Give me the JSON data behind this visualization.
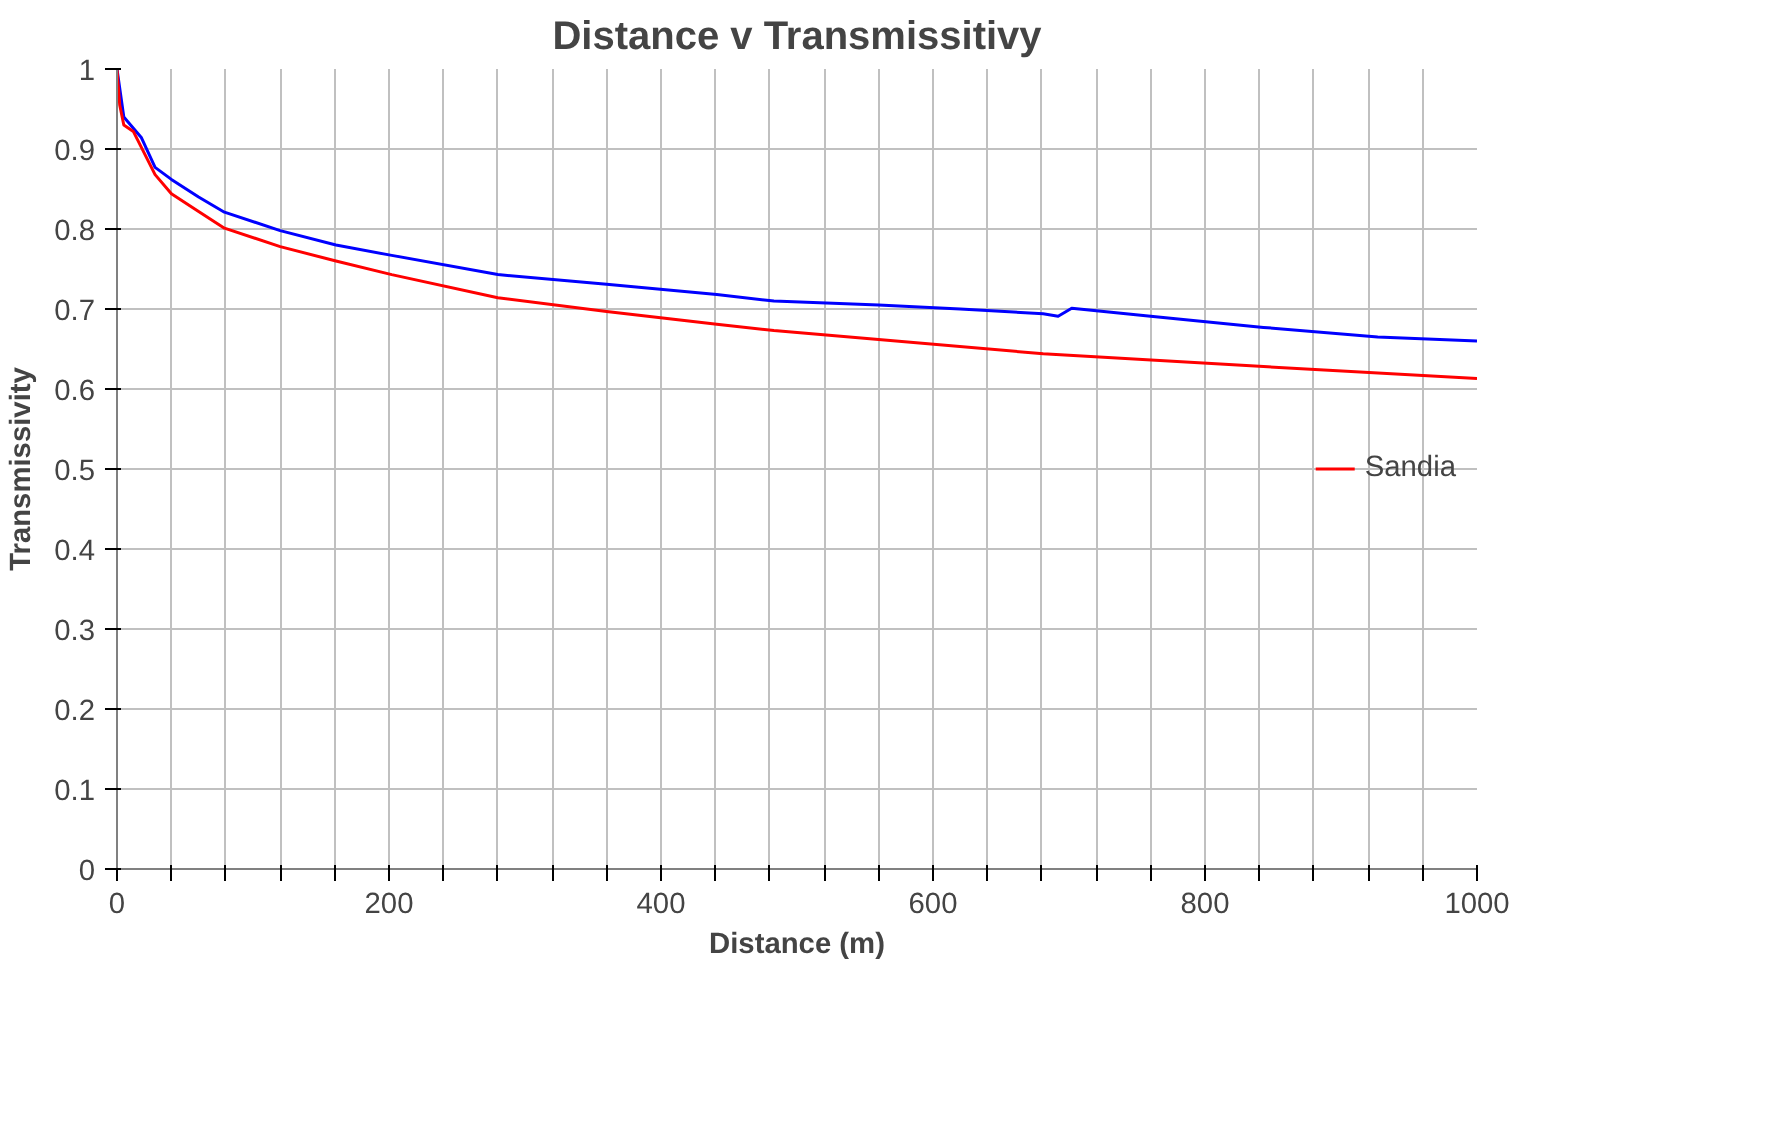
{
  "chart_data": {
    "type": "line",
    "title": "Distance v Transmissitivy",
    "xlabel": "Distance (m)",
    "ylabel": "Transmissivity",
    "xlim": [
      0,
      1000
    ],
    "ylim": [
      0,
      1
    ],
    "xticks": [
      0,
      {
        "value": 40,
        "label": null
      },
      {
        "value": 80,
        "label": null
      },
      {
        "value": 120,
        "label": null
      },
      {
        "value": 160,
        "label": null
      },
      200,
      {
        "value": 240,
        "label": null
      },
      {
        "value": 280,
        "label": null
      },
      {
        "value": 320,
        "label": null
      },
      {
        "value": 360,
        "label": null
      },
      400,
      {
        "value": 440,
        "label": null
      },
      {
        "value": 480,
        "label": null
      },
      {
        "value": 520,
        "label": null
      },
      {
        "value": 560,
        "label": null
      },
      600,
      {
        "value": 640,
        "label": null
      },
      {
        "value": 680,
        "label": null
      },
      {
        "value": 720,
        "label": null
      },
      {
        "value": 760,
        "label": null
      },
      800,
      {
        "value": 840,
        "label": null
      },
      {
        "value": 880,
        "label": null
      },
      {
        "value": 920,
        "label": null
      },
      {
        "value": 960,
        "label": null
      },
      1000
    ],
    "yticks": [
      0,
      0.1,
      0.2,
      0.3,
      0.4,
      0.5,
      0.6,
      0.7,
      0.8,
      0.9,
      1
    ],
    "grid": true,
    "legend": "right",
    "marker": "none",
    "line_style": "solid",
    "series": [
      {
        "color": "#0000ff",
        "x": [
          0,
          5,
          10,
          18,
          28,
          40,
          60,
          79,
          120,
          161,
          202,
          280,
          360,
          441,
          483,
          560,
          620,
          681,
          692,
          702,
          760,
          843,
          927,
          1000
        ],
        "values": [
          1.0,
          0.94,
          0.93,
          0.914,
          0.877,
          0.862,
          0.84,
          0.821,
          0.798,
          0.78,
          0.767,
          0.743,
          0.731,
          0.718,
          0.71,
          0.705,
          0.7,
          0.694,
          0.691,
          0.701,
          0.691,
          0.677,
          0.665,
          0.66
        ]
      },
      {
        "name": "Sandia",
        "color": "#ff0000",
        "x": [
          0,
          2,
          5,
          12,
          28,
          40,
          60,
          79,
          120,
          161,
          202,
          280,
          360,
          441,
          483,
          560,
          681,
          843,
          1000
        ],
        "values": [
          1.0,
          0.955,
          0.93,
          0.922,
          0.868,
          0.844,
          0.822,
          0.801,
          0.778,
          0.76,
          0.743,
          0.714,
          0.697,
          0.681,
          0.673,
          0.662,
          0.644,
          0.628,
          0.613
        ]
      }
    ]
  }
}
